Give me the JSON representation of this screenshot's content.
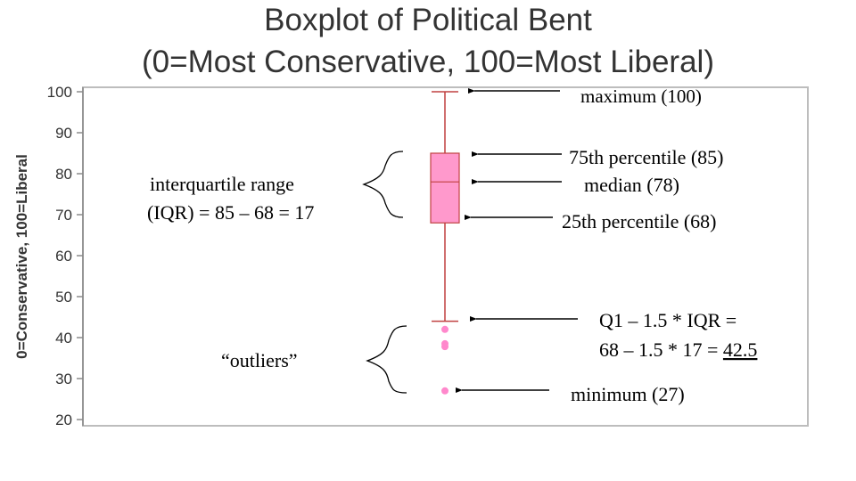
{
  "title_line1": "Boxplot of Political Bent",
  "title_line2": "(0=Most Conservative, 100=Most Liberal)",
  "chart_data": {
    "type": "boxplot",
    "ylabel": "0=Conservative, 100=Liberal",
    "ylim": [
      20,
      100
    ],
    "yticks": [
      20,
      30,
      40,
      50,
      60,
      70,
      80,
      90,
      100
    ],
    "box": {
      "max": 100,
      "q3": 85,
      "median": 78,
      "q1": 68,
      "lower_whisker": 44
    },
    "outliers": [
      42,
      38.5,
      37.8,
      27
    ],
    "box_color": "#ff99cc",
    "line_color": "#c04040",
    "outlier_color": "#ff88cc"
  },
  "annotations": {
    "maximum": "maximum (100)",
    "p75": "75th percentile (85)",
    "median": "median (78)",
    "p25": "25th percentile (68)",
    "iqr_line1": "interquartile range",
    "iqr_line2": "(IQR) = 85 – 68 = 17",
    "outliers": "“outliers”",
    "fence_line1": "Q1 – 1.5 * IQR =",
    "fence_line2_prefix": "68 – 1.5 * 17 = ",
    "fence_value": "42.5",
    "minimum": "minimum (27)"
  }
}
